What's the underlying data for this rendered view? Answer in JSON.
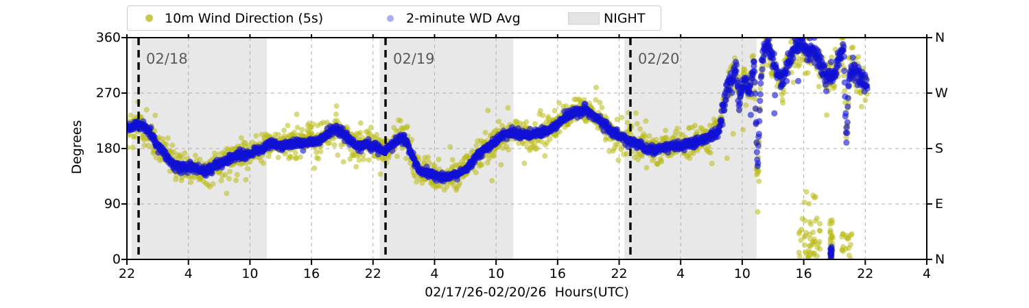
{
  "axes": {
    "xlabel": "02/17/26-02/20/26  Hours(UTC)",
    "ylabel": "Degrees",
    "x_tick_labels": [
      "22",
      "4",
      "10",
      "16",
      "22",
      "4",
      "10",
      "16",
      "22",
      "4",
      "10",
      "16",
      "22",
      "4"
    ],
    "y_left_tick_labels": [
      "0",
      "90",
      "180",
      "270",
      "360"
    ],
    "y_right_tick_labels": [
      "N",
      "E",
      "S",
      "W",
      "N"
    ]
  },
  "chart_data": {
    "type": "scatter",
    "title": "",
    "xlabel": "02/17/26-02/20/26  Hours(UTC)",
    "ylabel": "Degrees",
    "ylim": [
      0,
      360
    ],
    "y_ticks_deg": [
      0,
      90,
      180,
      270,
      360
    ],
    "y_right_compass": [
      "N",
      "E",
      "S",
      "W",
      "N"
    ],
    "x_axis_start": "02/17/26 22:00 UTC",
    "x_total_hours": 78,
    "x_tick_interval_hours": 6,
    "x_tick_labels": [
      "22",
      "4",
      "10",
      "16",
      "22",
      "4",
      "10",
      "16",
      "22",
      "4",
      "10",
      "16",
      "22",
      "4"
    ],
    "grid": true,
    "grid_color": "#b3b3b3",
    "legend_position": "top-left",
    "data_end_hours": 72.2,
    "series": [
      {
        "name": "10m Wind Direction (5s)",
        "type": "scatter",
        "color": "#bcbd22",
        "plot_rgba": "rgba(185,185,22,0.55)",
        "legend_marker_color": "#c9c94f",
        "sample_step_hours": 0.04,
        "spread_deg_day": 12,
        "spread_deg_final_section": 17
      },
      {
        "name": "2-minute WD Avg",
        "type": "scatter",
        "color": "#1010d6",
        "plot_rgba": "rgba(16,16,214,0.6)",
        "legend_marker_color": "#a9afe9",
        "sample_step_hours": 0.0333,
        "spread_deg_day": 3.5,
        "spread_deg_final_section": 8
      },
      {
        "name": "NIGHT",
        "type": "shading",
        "color": "#e8e8e8",
        "intervals_hours": [
          [
            0.45,
            13.65
          ],
          [
            24.65,
            37.68
          ],
          [
            48.5,
            61.41
          ]
        ]
      }
    ],
    "day_lines": [
      {
        "label": "02/18",
        "t_hours": 1.14
      },
      {
        "label": "02/19",
        "t_hours": 25.22
      },
      {
        "label": "02/20",
        "t_hours": 49.1
      }
    ],
    "wd_avg_anchors_t_deg": [
      [
        0,
        213
      ],
      [
        0.7,
        219
      ],
      [
        1.2,
        222
      ],
      [
        1.8,
        214
      ],
      [
        2.5,
        200
      ],
      [
        3.2,
        180
      ],
      [
        4,
        163
      ],
      [
        4.8,
        152
      ],
      [
        5.6,
        148
      ],
      [
        6.3,
        151
      ],
      [
        7,
        146
      ],
      [
        7.6,
        143
      ],
      [
        8.2,
        147
      ],
      [
        9,
        156
      ],
      [
        9.8,
        160
      ],
      [
        10.6,
        168
      ],
      [
        11.2,
        172
      ],
      [
        11.8,
        168
      ],
      [
        12.4,
        176
      ],
      [
        13,
        179
      ],
      [
        13.6,
        183
      ],
      [
        14.2,
        188
      ],
      [
        14.8,
        183
      ],
      [
        15.4,
        187
      ],
      [
        16,
        185
      ],
      [
        16.6,
        190
      ],
      [
        17.2,
        188
      ],
      [
        18,
        194
      ],
      [
        18.6,
        191
      ],
      [
        19.2,
        199
      ],
      [
        19.8,
        208
      ],
      [
        20.4,
        212
      ],
      [
        21,
        205
      ],
      [
        21.6,
        196
      ],
      [
        22.2,
        188
      ],
      [
        22.8,
        184
      ],
      [
        23.4,
        187
      ],
      [
        24,
        183
      ],
      [
        24.6,
        180
      ],
      [
        25.1,
        177
      ],
      [
        25.7,
        184
      ],
      [
        26.3,
        192
      ],
      [
        27,
        200
      ],
      [
        27.5,
        180
      ],
      [
        27.9,
        166
      ],
      [
        28.6,
        143
      ],
      [
        29.6,
        140
      ],
      [
        30.4,
        135
      ],
      [
        31.3,
        133
      ],
      [
        32.2,
        138
      ],
      [
        33.1,
        147
      ],
      [
        34,
        166
      ],
      [
        34.9,
        180
      ],
      [
        35.8,
        190
      ],
      [
        36.7,
        202
      ],
      [
        37.6,
        207
      ],
      [
        38.4,
        203
      ],
      [
        39.3,
        202
      ],
      [
        40.2,
        206
      ],
      [
        41.1,
        210
      ],
      [
        42,
        220
      ],
      [
        42.9,
        232
      ],
      [
        43.8,
        240
      ],
      [
        44.7,
        243
      ],
      [
        45.6,
        232
      ],
      [
        46.5,
        221
      ],
      [
        47.2,
        210
      ],
      [
        47.8,
        202
      ],
      [
        49,
        193
      ],
      [
        49.9,
        187
      ],
      [
        50.7,
        180
      ],
      [
        51.5,
        178
      ],
      [
        52.2,
        181
      ],
      [
        53,
        184
      ],
      [
        53.8,
        185
      ],
      [
        54.5,
        186
      ],
      [
        55.2,
        189
      ],
      [
        55.8,
        192
      ],
      [
        56.4,
        196
      ],
      [
        57,
        200
      ],
      [
        57.7,
        207
      ],
      [
        58.1,
        240
      ],
      [
        58.5,
        272
      ],
      [
        58.9,
        292
      ],
      [
        59.4,
        310
      ],
      [
        59.7,
        255
      ],
      [
        60,
        285
      ],
      [
        60.3,
        295
      ],
      [
        60.7,
        270
      ],
      [
        61,
        300
      ],
      [
        61.2,
        320
      ],
      [
        61.35,
        220
      ],
      [
        61.5,
        145
      ],
      [
        61.7,
        240
      ],
      [
        61.9,
        310
      ],
      [
        62.2,
        345
      ],
      [
        62.5,
        350
      ],
      [
        63,
        320
      ],
      [
        63.4,
        300
      ],
      [
        63.9,
        285
      ],
      [
        64.3,
        310
      ],
      [
        64.7,
        330
      ],
      [
        65.2,
        345
      ],
      [
        65.8,
        350
      ],
      [
        66.3,
        338
      ],
      [
        66.8,
        345
      ],
      [
        67.3,
        328
      ],
      [
        67.9,
        310
      ],
      [
        68.3,
        292
      ],
      [
        68.7,
        300
      ],
      [
        69.1,
        302
      ],
      [
        69.5,
        330
      ],
      [
        69.9,
        348
      ],
      [
        70.15,
        184
      ],
      [
        70.4,
        295
      ],
      [
        70.7,
        305
      ],
      [
        71.1,
        310
      ],
      [
        71.5,
        295
      ],
      [
        72,
        288
      ],
      [
        72.2,
        285
      ]
    ],
    "extra_yellow_clusters": [
      {
        "t_range": [
          65.4,
          67.6
        ],
        "deg_range": [
          0,
          70
        ],
        "n": 45
      },
      {
        "t_range": [
          68.55,
          68.85
        ],
        "deg_range": [
          0,
          65
        ],
        "n": 25
      },
      {
        "t_range": [
          69.7,
          70.7
        ],
        "deg_range": [
          0,
          45
        ],
        "n": 18
      },
      {
        "t_range": [
          66.0,
          67.2
        ],
        "deg_range": [
          80,
          112
        ],
        "n": 6
      },
      {
        "t_range": [
          61.35,
          61.65
        ],
        "deg_range": [
          125,
          150
        ],
        "n": 8
      }
    ],
    "extra_blue_clusters": [
      {
        "t_range": [
          68.62,
          68.74
        ],
        "deg_range": [
          0,
          22
        ],
        "n": 14
      }
    ]
  },
  "legend": {
    "items": [
      {
        "label": "10m Wind Direction (5s)"
      },
      {
        "label": "2-minute WD Avg"
      },
      {
        "label": "NIGHT"
      }
    ]
  }
}
